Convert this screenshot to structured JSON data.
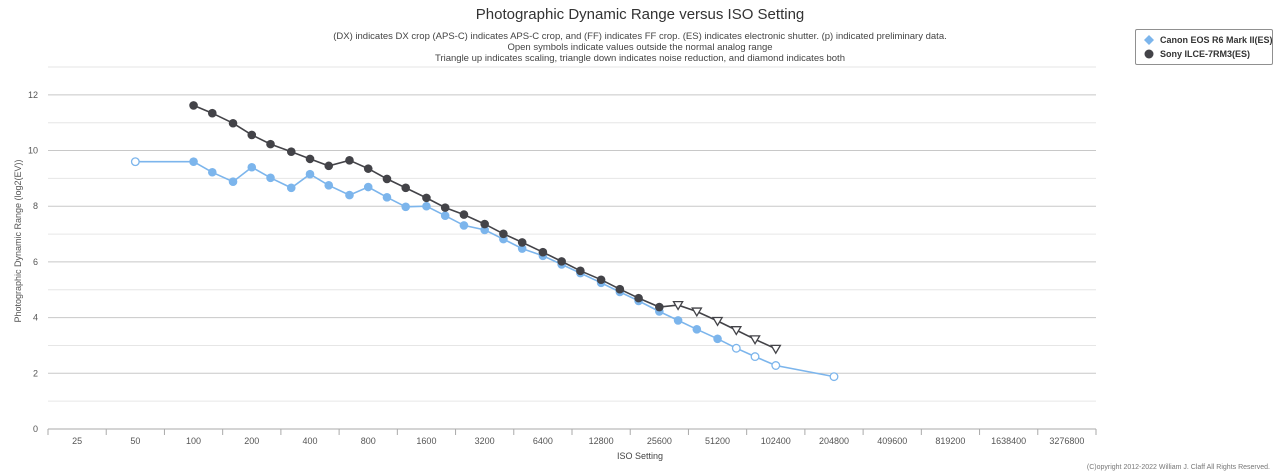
{
  "chart_data": {
    "type": "line",
    "title": "Photographic Dynamic Range versus ISO Setting",
    "subtitle_lines": [
      "(DX) indicates DX crop (APS-C) indicates APS-C crop, and (FF) indicates FF crop. (ES) indicates electronic shutter. (p) indicated preliminary data.",
      "Open symbols indicate values outside the normal analog range",
      "Triangle up indicates scaling, triangle down indicates noise reduction, and diamond indicates both"
    ],
    "xlabel": "ISO Setting",
    "ylabel": "Photographic Dynamic Range (log2(EV))",
    "x_scale": "log2",
    "x_tick_labels": [
      "25",
      "50",
      "100",
      "200",
      "400",
      "800",
      "1600",
      "3200",
      "6400",
      "12800",
      "25600",
      "51200",
      "102400",
      "204800",
      "409600",
      "819200",
      "1638400",
      "3276800"
    ],
    "xlim": [
      25,
      3276800
    ],
    "ylim": [
      0,
      12
    ],
    "y_tick_labels": [
      "0",
      "2",
      "4",
      "6",
      "8",
      "10",
      "12"
    ],
    "grid": true,
    "legend_position": "top-right",
    "series": [
      {
        "name": "Canon EOS R6 Mark II(ES)",
        "color": "#7cb5ec",
        "marker": "circle",
        "points": [
          {
            "x": 50,
            "y": 9.6,
            "symbol": "open-circle"
          },
          {
            "x": 100,
            "y": 9.6,
            "symbol": "circle"
          },
          {
            "x": 125,
            "y": 9.22,
            "symbol": "circle"
          },
          {
            "x": 160,
            "y": 8.88,
            "symbol": "circle"
          },
          {
            "x": 200,
            "y": 9.4,
            "symbol": "circle"
          },
          {
            "x": 250,
            "y": 9.02,
            "symbol": "circle"
          },
          {
            "x": 320,
            "y": 8.66,
            "symbol": "circle"
          },
          {
            "x": 400,
            "y": 9.15,
            "symbol": "circle"
          },
          {
            "x": 500,
            "y": 8.75,
            "symbol": "circle"
          },
          {
            "x": 640,
            "y": 8.4,
            "symbol": "circle"
          },
          {
            "x": 800,
            "y": 8.69,
            "symbol": "circle"
          },
          {
            "x": 1000,
            "y": 8.32,
            "symbol": "circle"
          },
          {
            "x": 1250,
            "y": 7.98,
            "symbol": "circle"
          },
          {
            "x": 1600,
            "y": 8.0,
            "symbol": "circle"
          },
          {
            "x": 2000,
            "y": 7.66,
            "symbol": "circle"
          },
          {
            "x": 2500,
            "y": 7.31,
            "symbol": "circle"
          },
          {
            "x": 3200,
            "y": 7.15,
            "symbol": "circle"
          },
          {
            "x": 4000,
            "y": 6.82,
            "symbol": "circle"
          },
          {
            "x": 5000,
            "y": 6.48,
            "symbol": "circle"
          },
          {
            "x": 6400,
            "y": 6.22,
            "symbol": "circle"
          },
          {
            "x": 8000,
            "y": 5.91,
            "symbol": "circle"
          },
          {
            "x": 10000,
            "y": 5.6,
            "symbol": "circle"
          },
          {
            "x": 12800,
            "y": 5.25,
            "symbol": "circle"
          },
          {
            "x": 16000,
            "y": 4.92,
            "symbol": "circle"
          },
          {
            "x": 20000,
            "y": 4.6,
            "symbol": "circle"
          },
          {
            "x": 25600,
            "y": 4.22,
            "symbol": "circle"
          },
          {
            "x": 32000,
            "y": 3.9,
            "symbol": "circle"
          },
          {
            "x": 40000,
            "y": 3.58,
            "symbol": "circle"
          },
          {
            "x": 51200,
            "y": 3.24,
            "symbol": "circle"
          },
          {
            "x": 64000,
            "y": 2.9,
            "symbol": "open-circle"
          },
          {
            "x": 80000,
            "y": 2.6,
            "symbol": "open-circle"
          },
          {
            "x": 102400,
            "y": 2.28,
            "symbol": "open-circle"
          },
          {
            "x": 204800,
            "y": 1.88,
            "symbol": "open-circle"
          }
        ]
      },
      {
        "name": "Sony ILCE-7RM3(ES)",
        "color": "#434348",
        "marker": "circle",
        "points": [
          {
            "x": 100,
            "y": 11.62,
            "symbol": "circle"
          },
          {
            "x": 125,
            "y": 11.34,
            "symbol": "circle"
          },
          {
            "x": 160,
            "y": 10.98,
            "symbol": "circle"
          },
          {
            "x": 200,
            "y": 10.56,
            "symbol": "circle"
          },
          {
            "x": 250,
            "y": 10.23,
            "symbol": "circle"
          },
          {
            "x": 320,
            "y": 9.96,
            "symbol": "circle"
          },
          {
            "x": 400,
            "y": 9.7,
            "symbol": "circle"
          },
          {
            "x": 500,
            "y": 9.45,
            "symbol": "circle"
          },
          {
            "x": 640,
            "y": 9.65,
            "symbol": "circle"
          },
          {
            "x": 800,
            "y": 9.35,
            "symbol": "circle"
          },
          {
            "x": 1000,
            "y": 8.98,
            "symbol": "circle"
          },
          {
            "x": 1250,
            "y": 8.66,
            "symbol": "circle"
          },
          {
            "x": 1600,
            "y": 8.3,
            "symbol": "circle"
          },
          {
            "x": 2000,
            "y": 7.95,
            "symbol": "circle"
          },
          {
            "x": 2500,
            "y": 7.7,
            "symbol": "circle"
          },
          {
            "x": 3200,
            "y": 7.36,
            "symbol": "circle"
          },
          {
            "x": 4000,
            "y": 7.01,
            "symbol": "circle"
          },
          {
            "x": 5000,
            "y": 6.7,
            "symbol": "circle"
          },
          {
            "x": 6400,
            "y": 6.35,
            "symbol": "circle"
          },
          {
            "x": 8000,
            "y": 6.02,
            "symbol": "circle"
          },
          {
            "x": 10000,
            "y": 5.68,
            "symbol": "circle"
          },
          {
            "x": 12800,
            "y": 5.36,
            "symbol": "circle"
          },
          {
            "x": 16000,
            "y": 5.02,
            "symbol": "circle"
          },
          {
            "x": 20000,
            "y": 4.7,
            "symbol": "circle"
          },
          {
            "x": 25600,
            "y": 4.38,
            "symbol": "circle"
          },
          {
            "x": 32000,
            "y": 4.45,
            "symbol": "open-triangle-down"
          },
          {
            "x": 40000,
            "y": 4.22,
            "symbol": "open-triangle-down"
          },
          {
            "x": 51200,
            "y": 3.88,
            "symbol": "open-triangle-down"
          },
          {
            "x": 64000,
            "y": 3.55,
            "symbol": "open-triangle-down"
          },
          {
            "x": 80000,
            "y": 3.22,
            "symbol": "open-triangle-down"
          },
          {
            "x": 102400,
            "y": 2.88,
            "symbol": "open-triangle-down"
          }
        ]
      }
    ]
  },
  "credits": "(C)opyright 2012-2022 William J. Claff All Rights Reserved."
}
